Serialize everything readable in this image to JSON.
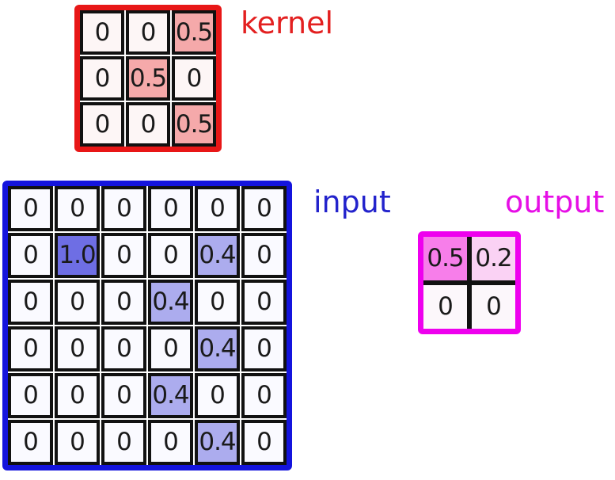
{
  "labels": {
    "kernel": "kernel",
    "input": "input",
    "output": "output"
  },
  "colors": {
    "kernel_frame": "#e81717",
    "kernel_label": "#e32020",
    "kernel_cell": "#fdf6f6",
    "kernel_hl": "#f5a9aa",
    "input_frame": "#1414dd",
    "input_label": "#2323cc",
    "input_cell": "#fafaff",
    "input_hl_strong": "#6e6ee4",
    "input_hl_light": "#acacee",
    "output_frame": "#ee00ee",
    "output_label": "#e60fe6",
    "output_cell": "#fcf7fb",
    "output_hl_strong": "#f77eea",
    "output_hl_light": "#fad2f4"
  },
  "kernel": {
    "rows": [
      [
        "0",
        "0",
        "0.5"
      ],
      [
        "0",
        "0.5",
        "0"
      ],
      [
        "0",
        "0",
        "0.5"
      ]
    ],
    "highlighted_cells": [
      [
        0,
        2
      ],
      [
        1,
        1
      ],
      [
        2,
        2
      ]
    ]
  },
  "input": {
    "rows": [
      [
        "0",
        "0",
        "0",
        "0",
        "0",
        "0"
      ],
      [
        "0",
        "1.0",
        "0",
        "0",
        "0.4",
        "0"
      ],
      [
        "0",
        "0",
        "0",
        "0.4",
        "0",
        "0"
      ],
      [
        "0",
        "0",
        "0",
        "0",
        "0.4",
        "0"
      ],
      [
        "0",
        "0",
        "0",
        "0.4",
        "0",
        "0"
      ],
      [
        "0",
        "0",
        "0",
        "0",
        "0.4",
        "0"
      ]
    ],
    "strong_highlighted_cells": [
      [
        1,
        1
      ]
    ],
    "light_highlighted_cells": [
      [
        1,
        4
      ],
      [
        2,
        3
      ],
      [
        3,
        4
      ],
      [
        4,
        3
      ],
      [
        5,
        4
      ]
    ]
  },
  "output": {
    "rows": [
      [
        "0.5",
        "0.2"
      ],
      [
        "0",
        "0"
      ]
    ],
    "strong_highlighted_cells": [
      [
        0,
        0
      ]
    ],
    "light_highlighted_cells": [
      [
        0,
        1
      ]
    ]
  }
}
